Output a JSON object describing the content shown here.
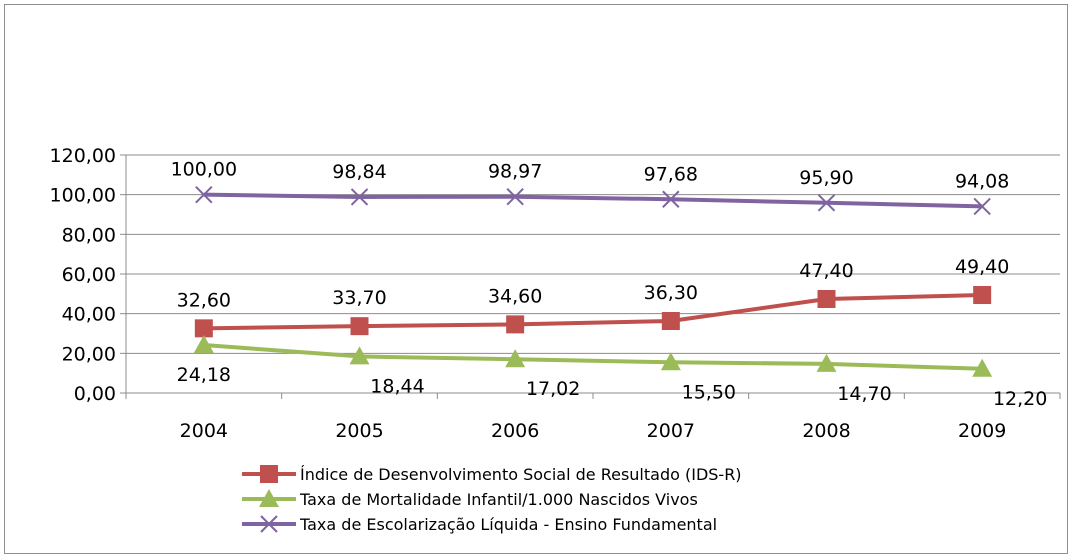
{
  "chart_data": {
    "type": "line",
    "title": "",
    "xlabel": "",
    "ylabel": "",
    "ylim": [
      0,
      120
    ],
    "y_ticks": [
      "0,00",
      "20,00",
      "40,00",
      "60,00",
      "80,00",
      "100,00",
      "120,00"
    ],
    "categories": [
      "2004",
      "2005",
      "2006",
      "2007",
      "2008",
      "2009"
    ],
    "grid": true,
    "legend_position": "bottom",
    "series": [
      {
        "name": "Índice de Desenvolvimento Social de Resultado (IDS-R)",
        "values": [
          32.6,
          33.7,
          34.6,
          36.3,
          47.4,
          49.4
        ],
        "labels": [
          "32,60",
          "33,70",
          "34,60",
          "36,30",
          "47,40",
          "49,40"
        ],
        "color": "#c0504d",
        "marker": "square"
      },
      {
        "name": "Taxa de Mortalidade Infantil/1.000 Nascidos Vivos",
        "values": [
          24.18,
          18.44,
          17.02,
          15.5,
          14.7,
          12.2
        ],
        "labels": [
          "24,18",
          "18,44",
          "17,02",
          "15,50",
          "14,70",
          "12,20"
        ],
        "color": "#9bbb59",
        "marker": "triangle"
      },
      {
        "name": "Taxa de Escolarização Líquida - Ensino Fundamental",
        "values": [
          100.0,
          98.84,
          98.97,
          97.68,
          95.9,
          94.08
        ],
        "labels": [
          "100,00",
          "98,84",
          "98,97",
          "97,68",
          "95,90",
          "94,08"
        ],
        "color": "#8064a2",
        "marker": "x"
      }
    ]
  }
}
